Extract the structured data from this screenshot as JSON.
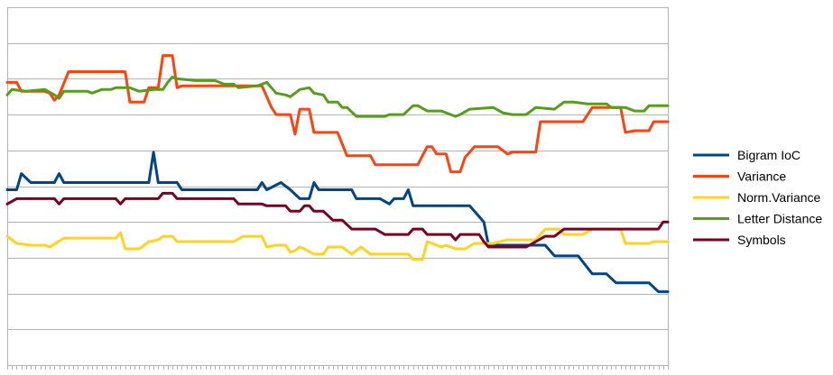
{
  "chart_data": {
    "type": "line",
    "title": "",
    "xlabel": "",
    "ylabel": "",
    "grid": true,
    "legend_position": "right",
    "x_count": 140,
    "ylim": [
      0,
      10
    ],
    "series": [
      {
        "name": "Bigram IoC",
        "color": "#004586",
        "points": [
          [
            0,
            4.9
          ],
          [
            2,
            4.9
          ],
          [
            3,
            5.35
          ],
          [
            5,
            5.1
          ],
          [
            10,
            5.1
          ],
          [
            11,
            5.35
          ],
          [
            12,
            5.1
          ],
          [
            30,
            5.1
          ],
          [
            31,
            5.95
          ],
          [
            32,
            5.1
          ],
          [
            36,
            5.1
          ],
          [
            37,
            4.9
          ],
          [
            53,
            4.9
          ],
          [
            54,
            5.1
          ],
          [
            55,
            4.9
          ],
          [
            58,
            5.1
          ],
          [
            60,
            4.9
          ],
          [
            62,
            4.65
          ],
          [
            64,
            4.65
          ],
          [
            65,
            5.1
          ],
          [
            66,
            4.9
          ],
          [
            73,
            4.9
          ],
          [
            74,
            4.65
          ],
          [
            79,
            4.65
          ],
          [
            81,
            4.5
          ],
          [
            82,
            4.65
          ],
          [
            84,
            4.65
          ],
          [
            85,
            4.9
          ],
          [
            86,
            4.45
          ],
          [
            98,
            4.45
          ],
          [
            101,
            4
          ],
          [
            102,
            3.35
          ],
          [
            114,
            3.35
          ],
          [
            116,
            3.05
          ],
          [
            121,
            3.05
          ],
          [
            124,
            2.55
          ],
          [
            127,
            2.55
          ],
          [
            129,
            2.3
          ],
          [
            136,
            2.3
          ],
          [
            138,
            2.05
          ],
          [
            140,
            2.05
          ]
        ]
      },
      {
        "name": "Variance",
        "color": "#ff420e",
        "points": [
          [
            0,
            7.9
          ],
          [
            2,
            7.9
          ],
          [
            3,
            7.65
          ],
          [
            8,
            7.65
          ],
          [
            9,
            7.6
          ],
          [
            10,
            7.4
          ],
          [
            11,
            7.55
          ],
          [
            13,
            8.2
          ],
          [
            25,
            8.2
          ],
          [
            26,
            7.35
          ],
          [
            29,
            7.35
          ],
          [
            30,
            7.75
          ],
          [
            32,
            7.75
          ],
          [
            33,
            8.65
          ],
          [
            35,
            8.65
          ],
          [
            36,
            7.75
          ],
          [
            37,
            7.8
          ],
          [
            54,
            7.8
          ],
          [
            56,
            7.2
          ],
          [
            57,
            7
          ],
          [
            60,
            7
          ],
          [
            61,
            6.45
          ],
          [
            62,
            7.15
          ],
          [
            64,
            7.15
          ],
          [
            65,
            6.5
          ],
          [
            70,
            6.5
          ],
          [
            72,
            5.85
          ],
          [
            77,
            5.85
          ],
          [
            78,
            5.6
          ],
          [
            87,
            5.6
          ],
          [
            89,
            6.1
          ],
          [
            90,
            6.1
          ],
          [
            91,
            5.9
          ],
          [
            93,
            5.9
          ],
          [
            94,
            5.4
          ],
          [
            96,
            5.4
          ],
          [
            97,
            5.8
          ],
          [
            99,
            6.1
          ],
          [
            104,
            6.1
          ],
          [
            106,
            5.9
          ],
          [
            107,
            5.95
          ],
          [
            112,
            5.95
          ],
          [
            113,
            6.8
          ],
          [
            122,
            6.8
          ],
          [
            124,
            7.2
          ],
          [
            130,
            7.2
          ],
          [
            131,
            6.5
          ],
          [
            133,
            6.55
          ],
          [
            136,
            6.55
          ],
          [
            137,
            6.8
          ],
          [
            140,
            6.8
          ]
        ]
      },
      {
        "name": "Norm.Variance",
        "color": "#ffd320",
        "points": [
          [
            0,
            3.6
          ],
          [
            2,
            3.4
          ],
          [
            5,
            3.35
          ],
          [
            8,
            3.35
          ],
          [
            9,
            3.3
          ],
          [
            12,
            3.55
          ],
          [
            23,
            3.55
          ],
          [
            24,
            3.7
          ],
          [
            25,
            3.25
          ],
          [
            28,
            3.25
          ],
          [
            30,
            3.45
          ],
          [
            32,
            3.5
          ],
          [
            33,
            3.6
          ],
          [
            35,
            3.6
          ],
          [
            36,
            3.45
          ],
          [
            48,
            3.45
          ],
          [
            50,
            3.6
          ],
          [
            54,
            3.6
          ],
          [
            55,
            3.3
          ],
          [
            57,
            3.35
          ],
          [
            59,
            3.35
          ],
          [
            60,
            3.15
          ],
          [
            61,
            3.2
          ],
          [
            62,
            3.3
          ],
          [
            63,
            3.25
          ],
          [
            65,
            3.1
          ],
          [
            67,
            3.1
          ],
          [
            68,
            3.3
          ],
          [
            71,
            3.3
          ],
          [
            73,
            3.1
          ],
          [
            75,
            3.3
          ],
          [
            77,
            3.1
          ],
          [
            85,
            3.1
          ],
          [
            86,
            2.95
          ],
          [
            88,
            2.95
          ],
          [
            89,
            3.45
          ],
          [
            92,
            3.3
          ],
          [
            93,
            3.35
          ],
          [
            95,
            3.25
          ],
          [
            97,
            3.25
          ],
          [
            99,
            3.4
          ],
          [
            103,
            3.4
          ],
          [
            106,
            3.5
          ],
          [
            112,
            3.5
          ],
          [
            114,
            3.8
          ],
          [
            117,
            3.8
          ],
          [
            118,
            3.65
          ],
          [
            122,
            3.65
          ],
          [
            124,
            3.8
          ],
          [
            130,
            3.8
          ],
          [
            131,
            3.4
          ],
          [
            136,
            3.4
          ],
          [
            137,
            3.45
          ],
          [
            140,
            3.45
          ]
        ]
      },
      {
        "name": "Letter Distance",
        "color": "#579d1c",
        "points": [
          [
            0,
            7.55
          ],
          [
            1,
            7.7
          ],
          [
            4,
            7.65
          ],
          [
            8,
            7.7
          ],
          [
            10,
            7.55
          ],
          [
            11,
            7.45
          ],
          [
            12,
            7.65
          ],
          [
            17,
            7.65
          ],
          [
            18,
            7.6
          ],
          [
            20,
            7.7
          ],
          [
            22,
            7.7
          ],
          [
            23,
            7.75
          ],
          [
            26,
            7.75
          ],
          [
            28,
            7.65
          ],
          [
            31,
            7.7
          ],
          [
            33,
            7.7
          ],
          [
            34,
            7.9
          ],
          [
            35,
            8.05
          ],
          [
            36,
            8
          ],
          [
            40,
            7.95
          ],
          [
            44,
            7.95
          ],
          [
            46,
            7.85
          ],
          [
            48,
            7.85
          ],
          [
            49,
            7.75
          ],
          [
            53,
            7.8
          ],
          [
            55,
            7.9
          ],
          [
            57,
            7.6
          ],
          [
            59,
            7.55
          ],
          [
            60,
            7.5
          ],
          [
            62,
            7.7
          ],
          [
            64,
            7.75
          ],
          [
            65,
            7.6
          ],
          [
            67,
            7.55
          ],
          [
            68,
            7.35
          ],
          [
            70,
            7.35
          ],
          [
            71,
            7.2
          ],
          [
            72,
            7.2
          ],
          [
            74,
            6.95
          ],
          [
            80,
            6.95
          ],
          [
            81,
            7
          ],
          [
            84,
            7
          ],
          [
            86,
            7.25
          ],
          [
            87,
            7.25
          ],
          [
            89,
            7.1
          ],
          [
            92,
            7.1
          ],
          [
            95,
            6.95
          ],
          [
            96,
            7
          ],
          [
            98,
            7.15
          ],
          [
            103,
            7.2
          ],
          [
            105,
            7.05
          ],
          [
            107,
            7
          ],
          [
            110,
            7
          ],
          [
            112,
            7.2
          ],
          [
            116,
            7.15
          ],
          [
            118,
            7.35
          ],
          [
            120,
            7.35
          ],
          [
            123,
            7.3
          ],
          [
            127,
            7.3
          ],
          [
            128,
            7.2
          ],
          [
            131,
            7.2
          ],
          [
            133,
            7.1
          ],
          [
            135,
            7.1
          ],
          [
            136,
            7.25
          ],
          [
            137,
            7.25
          ],
          [
            140,
            7.25
          ]
        ]
      },
      {
        "name": "Symbols",
        "color": "#7e0021",
        "points": [
          [
            0,
            4.5
          ],
          [
            2,
            4.65
          ],
          [
            10,
            4.65
          ],
          [
            11,
            4.5
          ],
          [
            12,
            4.65
          ],
          [
            23,
            4.65
          ],
          [
            24,
            4.5
          ],
          [
            25,
            4.65
          ],
          [
            32,
            4.65
          ],
          [
            33,
            4.8
          ],
          [
            35,
            4.8
          ],
          [
            36,
            4.65
          ],
          [
            48,
            4.65
          ],
          [
            49,
            4.5
          ],
          [
            54,
            4.5
          ],
          [
            55,
            4.45
          ],
          [
            59,
            4.45
          ],
          [
            60,
            4.3
          ],
          [
            62,
            4.3
          ],
          [
            63,
            4.45
          ],
          [
            64,
            4.45
          ],
          [
            65,
            4.3
          ],
          [
            67,
            4.3
          ],
          [
            69,
            4.05
          ],
          [
            71,
            4.05
          ],
          [
            73,
            3.8
          ],
          [
            78,
            3.8
          ],
          [
            80,
            3.65
          ],
          [
            85,
            3.65
          ],
          [
            86,
            3.8
          ],
          [
            88,
            3.8
          ],
          [
            89,
            3.65
          ],
          [
            94,
            3.65
          ],
          [
            95,
            3.5
          ],
          [
            96,
            3.65
          ],
          [
            100,
            3.65
          ],
          [
            101,
            3.45
          ],
          [
            102,
            3.3
          ],
          [
            110,
            3.3
          ],
          [
            114,
            3.6
          ],
          [
            116,
            3.6
          ],
          [
            118,
            3.8
          ],
          [
            138,
            3.8
          ],
          [
            139,
            4
          ],
          [
            140,
            4
          ]
        ]
      }
    ]
  }
}
